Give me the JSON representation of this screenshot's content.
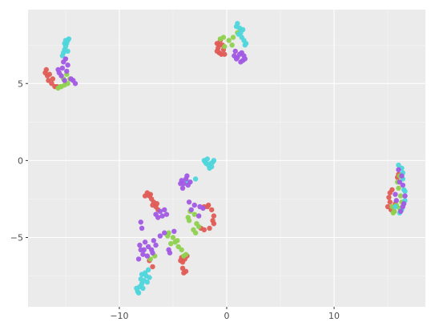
{
  "chart_data": {
    "type": "scatter",
    "xlim": [
      -18.5,
      18.5
    ],
    "ylim": [
      -9.5,
      9.8
    ],
    "grid": true,
    "legend": "none",
    "x_ticks": [
      -10,
      0,
      10
    ],
    "y_ticks": [
      5,
      0,
      -5
    ],
    "x_tick_labels": [
      "−10",
      "0",
      "10"
    ],
    "y_tick_labels": [
      "5",
      "0",
      "−5"
    ],
    "colors": {
      "panel_bg": "#ebebeb",
      "grid_major": "#ffffff",
      "red": "#e05c55",
      "green": "#8fd14f",
      "cyan": "#4fd6dc",
      "purple": "#a159e4"
    },
    "series": [
      {
        "color": "red",
        "points": [
          [
            -16.9,
            5.7
          ],
          [
            -16.7,
            5.5
          ],
          [
            -16.6,
            5.2
          ],
          [
            -16.3,
            5.0
          ],
          [
            -16.0,
            4.8
          ],
          [
            -15.8,
            4.8
          ],
          [
            -16.8,
            5.9
          ],
          [
            -16.5,
            5.6
          ],
          [
            -16.2,
            5.3
          ],
          [
            -0.9,
            7.6
          ],
          [
            -0.8,
            7.3
          ],
          [
            -0.7,
            7.0
          ],
          [
            -0.5,
            6.9
          ],
          [
            -0.3,
            7.2
          ],
          [
            -0.6,
            7.8
          ],
          [
            -0.9,
            7.1
          ],
          [
            -0.4,
            7.5
          ],
          [
            -0.2,
            6.9
          ],
          [
            -0.7,
            7.5
          ],
          [
            -7.4,
            -2.1
          ],
          [
            -7.2,
            -2.3
          ],
          [
            -7.0,
            -2.5
          ],
          [
            -6.8,
            -2.7
          ],
          [
            -6.6,
            -3.0
          ],
          [
            -6.4,
            -3.2
          ],
          [
            -7.1,
            -2.2
          ],
          [
            -6.9,
            -2.9
          ],
          [
            -7.6,
            -2.3
          ],
          [
            -6.5,
            -2.8
          ],
          [
            -2.1,
            -3.0
          ],
          [
            -1.7,
            -2.9
          ],
          [
            -1.4,
            -3.2
          ],
          [
            -1.2,
            -3.6
          ],
          [
            -1.2,
            -4.1
          ],
          [
            -1.6,
            -4.4
          ],
          [
            -2.1,
            -4.5
          ],
          [
            -2.4,
            -4.4
          ],
          [
            -1.3,
            -3.9
          ],
          [
            -1.8,
            -3.0
          ],
          [
            -4.2,
            -6.3
          ],
          [
            -3.9,
            -6.4
          ],
          [
            -4.1,
            -6.6
          ],
          [
            -3.8,
            -7.2
          ],
          [
            -4.0,
            -7.3
          ],
          [
            -4.1,
            -7.0
          ],
          [
            -3.7,
            -6.2
          ],
          [
            -4.3,
            -6.5
          ],
          [
            15.1,
            -2.4
          ],
          [
            15.2,
            -2.7
          ],
          [
            15.0,
            -3.0
          ],
          [
            15.3,
            -3.2
          ],
          [
            15.4,
            -1.9
          ],
          [
            15.6,
            -3.3
          ],
          [
            15.7,
            -2.8
          ],
          [
            16.0,
            -0.9
          ],
          [
            15.9,
            -1.1
          ],
          [
            15.2,
            -2.1
          ],
          [
            -6.9,
            -6.9
          ],
          [
            -7.2,
            -6.5
          ]
        ]
      },
      {
        "color": "green",
        "points": [
          [
            -15.7,
            4.7
          ],
          [
            -15.4,
            4.8
          ],
          [
            -15.1,
            4.9
          ],
          [
            -14.8,
            5.0
          ],
          [
            -14.6,
            5.3
          ],
          [
            -14.9,
            5.6
          ],
          [
            -15.2,
            5.3
          ],
          [
            -15.5,
            4.8
          ],
          [
            -0.3,
            8.0
          ],
          [
            0.2,
            7.8
          ],
          [
            0.6,
            8.0
          ],
          [
            1.0,
            8.3
          ],
          [
            -0.6,
            7.9
          ],
          [
            0.5,
            7.5
          ],
          [
            1.3,
            8.5
          ],
          [
            -0.2,
            7.4
          ],
          [
            -5.4,
            -4.7
          ],
          [
            -5.0,
            -5.0
          ],
          [
            -4.8,
            -5.3
          ],
          [
            -4.5,
            -5.6
          ],
          [
            -4.2,
            -5.8
          ],
          [
            -5.2,
            -5.4
          ],
          [
            -4.6,
            -5.2
          ],
          [
            -4.0,
            -6.2
          ],
          [
            -3.8,
            -6.1
          ],
          [
            -5.5,
            -4.9
          ],
          [
            -3.6,
            -3.7
          ],
          [
            -3.5,
            -3.9
          ],
          [
            -3.1,
            -4.5
          ],
          [
            -2.9,
            -4.7
          ],
          [
            -2.6,
            -4.3
          ],
          [
            -3.0,
            -3.5
          ],
          [
            -2.8,
            -4.1
          ],
          [
            -3.4,
            -3.3
          ],
          [
            15.4,
            -3.0
          ],
          [
            15.6,
            -3.3
          ],
          [
            15.8,
            -2.9
          ],
          [
            16.1,
            -3.1
          ],
          [
            16.3,
            -2.7
          ],
          [
            16.0,
            -1.8
          ],
          [
            16.2,
            -2.3
          ],
          [
            15.9,
            -1.4
          ],
          [
            16.1,
            -1.0
          ],
          [
            15.5,
            -3.4
          ],
          [
            -7.1,
            -6.4
          ],
          [
            -6.7,
            -6.2
          ]
        ]
      },
      {
        "color": "cyan",
        "points": [
          [
            -15.2,
            7.0
          ],
          [
            -15.1,
            7.2
          ],
          [
            -15.0,
            7.4
          ],
          [
            -14.9,
            7.6
          ],
          [
            -14.8,
            7.8
          ],
          [
            -14.7,
            7.9
          ],
          [
            -15.3,
            6.8
          ],
          [
            -15.1,
            7.6
          ],
          [
            -14.8,
            7.1
          ],
          [
            -15.0,
            7.8
          ],
          [
            1.0,
            8.9
          ],
          [
            1.2,
            8.6
          ],
          [
            1.3,
            8.3
          ],
          [
            1.4,
            8.0
          ],
          [
            1.6,
            7.8
          ],
          [
            1.8,
            7.6
          ],
          [
            1.1,
            8.2
          ],
          [
            1.5,
            8.5
          ],
          [
            0.9,
            8.7
          ],
          [
            1.7,
            7.5
          ],
          [
            -8.3,
            -8.5
          ],
          [
            -8.1,
            -8.2
          ],
          [
            -7.9,
            -8.0
          ],
          [
            -7.7,
            -7.8
          ],
          [
            -7.5,
            -7.5
          ],
          [
            -7.3,
            -7.1
          ],
          [
            -8.2,
            -8.6
          ],
          [
            -7.8,
            -8.3
          ],
          [
            -7.4,
            -7.9
          ],
          [
            -7.6,
            -7.3
          ],
          [
            -8.0,
            -7.7
          ],
          [
            -7.2,
            -7.6
          ],
          [
            -8.4,
            -8.3
          ],
          [
            -7.9,
            -7.4
          ],
          [
            -2.1,
            0.0
          ],
          [
            -1.9,
            -0.2
          ],
          [
            -1.7,
            -0.3
          ],
          [
            -1.5,
            -0.2
          ],
          [
            -1.3,
            -0.1
          ],
          [
            -1.6,
            -0.5
          ],
          [
            -1.8,
            0.1
          ],
          [
            -1.4,
            -0.4
          ],
          [
            -1.2,
            0.0
          ],
          [
            -2.0,
            -0.1
          ],
          [
            16.0,
            -0.3
          ],
          [
            16.3,
            -0.5
          ],
          [
            16.4,
            -1.2
          ],
          [
            16.5,
            -1.9
          ],
          [
            16.6,
            -2.6
          ],
          [
            16.3,
            -3.2
          ],
          [
            16.1,
            -3.4
          ],
          [
            15.7,
            -3.0
          ],
          [
            16.4,
            -0.8
          ],
          [
            16.6,
            -2.0
          ],
          [
            -3.6,
            -1.4
          ],
          [
            -2.9,
            -1.2
          ]
        ]
      },
      {
        "color": "purple",
        "points": [
          [
            -15.6,
            5.7
          ],
          [
            -15.3,
            6.0
          ],
          [
            -15.2,
            6.4
          ],
          [
            -15.0,
            6.6
          ],
          [
            -14.8,
            6.2
          ],
          [
            -15.4,
            5.5
          ],
          [
            -15.7,
            5.9
          ],
          [
            -15.1,
            5.2
          ],
          [
            -14.9,
            5.8
          ],
          [
            -14.5,
            5.3
          ],
          [
            -14.1,
            5.0
          ],
          [
            -14.3,
            5.2
          ],
          [
            0.7,
            6.8
          ],
          [
            0.9,
            6.6
          ],
          [
            1.2,
            6.9
          ],
          [
            1.5,
            6.5
          ],
          [
            1.6,
            6.8
          ],
          [
            0.8,
            7.1
          ],
          [
            1.3,
            6.4
          ],
          [
            1.0,
            6.7
          ],
          [
            1.4,
            7.0
          ],
          [
            1.7,
            6.6
          ],
          [
            -8.0,
            -4.0
          ],
          [
            -7.9,
            -4.4
          ],
          [
            -8.1,
            -5.5
          ],
          [
            -7.7,
            -5.8
          ],
          [
            -7.3,
            -5.6
          ],
          [
            -6.8,
            -5.2
          ],
          [
            -6.6,
            -5.5
          ],
          [
            -6.2,
            -4.9
          ],
          [
            -5.8,
            -4.7
          ],
          [
            -8.2,
            -6.4
          ],
          [
            -7.8,
            -6.1
          ],
          [
            -7.4,
            -6.2
          ],
          [
            -7.0,
            -5.8
          ],
          [
            -7.6,
            -5.3
          ],
          [
            -8.0,
            -5.8
          ],
          [
            -6.9,
            -6.0
          ],
          [
            -6.6,
            -3.5
          ],
          [
            -6.2,
            -3.3
          ],
          [
            -6.0,
            -3.6
          ],
          [
            -5.8,
            -3.2
          ],
          [
            -6.4,
            -3.7
          ],
          [
            -5.6,
            -3.5
          ],
          [
            -4.2,
            -1.3
          ],
          [
            -4.0,
            -1.5
          ],
          [
            -3.8,
            -1.2
          ],
          [
            -3.6,
            -1.6
          ],
          [
            -4.1,
            -1.8
          ],
          [
            -3.7,
            -1.0
          ],
          [
            -3.4,
            -1.4
          ],
          [
            -4.3,
            -1.5
          ],
          [
            -3.5,
            -2.7
          ],
          [
            -3.0,
            -2.9
          ],
          [
            -2.5,
            -3.0
          ],
          [
            -2.2,
            -3.1
          ],
          [
            -2.6,
            -3.6
          ],
          [
            -3.3,
            -3.2
          ],
          [
            16.0,
            -0.6
          ],
          [
            16.3,
            -1.0
          ],
          [
            16.4,
            -1.6
          ],
          [
            16.6,
            -2.3
          ],
          [
            16.5,
            -2.8
          ],
          [
            16.2,
            -3.3
          ],
          [
            15.8,
            -2.6
          ],
          [
            16.1,
            -1.4
          ],
          [
            16.4,
            -3.0
          ],
          [
            15.7,
            -2.2
          ],
          [
            -5.3,
            -6.0
          ],
          [
            -4.9,
            -4.6
          ],
          [
            -5.4,
            -5.8
          ]
        ]
      }
    ]
  }
}
